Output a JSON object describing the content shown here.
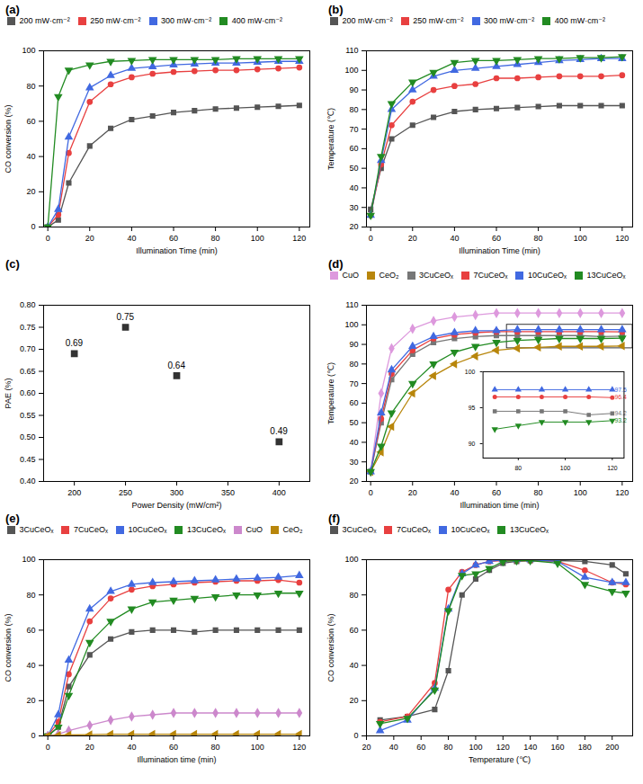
{
  "chart_data": [
    {
      "type": "line",
      "title": "(a)",
      "xlabel": "Illumination Time (min)",
      "ylabel": "CO conversion (%)",
      "xlim": [
        -2,
        125
      ],
      "ylim": [
        0,
        100
      ],
      "xticks": [
        0,
        20,
        40,
        60,
        80,
        100,
        120
      ],
      "yticks": [
        0,
        20,
        40,
        60,
        80,
        100
      ],
      "x": [
        0,
        5,
        10,
        20,
        30,
        40,
        50,
        60,
        70,
        80,
        90,
        100,
        110,
        120
      ],
      "series": [
        {
          "name": "200 mW·cm⁻²",
          "color": "#555555",
          "marker": "square",
          "values": [
            0,
            4,
            25,
            46,
            56,
            61,
            63,
            65,
            66,
            67,
            67.5,
            68,
            68.5,
            69
          ]
        },
        {
          "name": "250 mW·cm⁻²",
          "color": "#e84040",
          "marker": "circle",
          "values": [
            0,
            7,
            42,
            71,
            81,
            85,
            87,
            88,
            88.5,
            89,
            89,
            89.5,
            90,
            90.5
          ]
        },
        {
          "name": "300 mW·cm⁻²",
          "color": "#4169e1",
          "marker": "triangle-up",
          "values": [
            0,
            10,
            51,
            79,
            86,
            90,
            91,
            92,
            92.5,
            93,
            93,
            93.5,
            94,
            94
          ]
        },
        {
          "name": "400 mW·cm⁻²",
          "color": "#228b22",
          "marker": "triangle-down",
          "values": [
            0,
            74,
            89,
            92,
            94,
            94.5,
            95,
            95,
            95,
            95,
            95.5,
            95.5,
            95.5,
            95.5
          ]
        }
      ]
    },
    {
      "type": "line",
      "title": "(b)",
      "xlabel": "Illumination Time (min)",
      "ylabel": "Temperature (℃)",
      "xlim": [
        -2,
        125
      ],
      "ylim": [
        20,
        110
      ],
      "xticks": [
        0,
        20,
        40,
        60,
        80,
        100,
        120
      ],
      "yticks": [
        20,
        30,
        40,
        50,
        60,
        70,
        80,
        90,
        100,
        110
      ],
      "x": [
        0,
        5,
        10,
        20,
        30,
        40,
        50,
        60,
        70,
        80,
        90,
        100,
        110,
        120
      ],
      "series": [
        {
          "name": "200 mW·cm⁻²",
          "color": "#555555",
          "marker": "square",
          "values": [
            29,
            50,
            65,
            72,
            76,
            79,
            80,
            80.5,
            81,
            81.5,
            82,
            82,
            82,
            82
          ]
        },
        {
          "name": "250 mW·cm⁻²",
          "color": "#e84040",
          "marker": "circle",
          "values": [
            26,
            52,
            72,
            84,
            90,
            92,
            93,
            96,
            96,
            96.5,
            97,
            97,
            97,
            97.5
          ]
        },
        {
          "name": "300 mW·cm⁻²",
          "color": "#4169e1",
          "marker": "triangle-up",
          "values": [
            26,
            54,
            80,
            90,
            97,
            100,
            101,
            102,
            103,
            104,
            105,
            105.5,
            106,
            106
          ]
        },
        {
          "name": "400 mW·cm⁻²",
          "color": "#228b22",
          "marker": "triangle-down",
          "values": [
            26,
            56,
            83,
            94,
            99,
            104,
            105,
            105,
            105.5,
            106,
            106,
            106.5,
            106.5,
            107
          ]
        }
      ]
    },
    {
      "type": "scatter",
      "title": "(c)",
      "xlabel": "Power Density (mW/cm²)",
      "ylabel": "PAE (%)",
      "xlim": [
        170,
        430
      ],
      "ylim": [
        0.4,
        0.8
      ],
      "xticks": [
        200,
        250,
        300,
        350,
        400
      ],
      "yticks": [
        {
          "value": 0.4,
          "label": "0.40"
        },
        0.45,
        {
          "value": 0.5,
          "label": "0.50"
        },
        0.55,
        {
          "value": 0.6,
          "label": "0.60"
        },
        0.65,
        {
          "value": 0.7,
          "label": "0.70"
        },
        0.75,
        {
          "value": 0.8,
          "label": "0.80"
        }
      ],
      "x": [
        200,
        250,
        300,
        400
      ],
      "values": [
        0.69,
        0.75,
        0.64,
        0.49
      ],
      "color": "#333333",
      "marker": "square",
      "data_labels": true
    },
    {
      "type": "line",
      "title": "(d)",
      "xlabel": "Illumination time (min)",
      "ylabel": "Temperature (℃)",
      "xlim": [
        -2,
        125
      ],
      "ylim": [
        20,
        110
      ],
      "xticks": [
        0,
        20,
        40,
        60,
        80,
        100,
        120
      ],
      "yticks": [
        20,
        30,
        40,
        50,
        60,
        70,
        80,
        90,
        100,
        110
      ],
      "x": [
        0,
        5,
        10,
        20,
        30,
        40,
        50,
        60,
        70,
        80,
        90,
        100,
        110,
        120
      ],
      "series": [
        {
          "name": "CuO",
          "color": "#dd99dd",
          "marker": "diamond",
          "values": [
            25,
            65,
            88,
            98,
            102,
            104,
            105,
            106,
            106,
            106,
            106,
            106,
            106,
            106
          ]
        },
        {
          "name": "CeO₂",
          "color": "#b8860b",
          "marker": "triangle-left",
          "values": [
            25,
            35,
            48,
            65,
            74,
            80,
            84,
            87,
            88,
            88.5,
            89,
            89,
            89,
            89.2
          ]
        },
        {
          "name": "3CuCeOₓ",
          "color": "#777777",
          "marker": "square",
          "values": [
            25,
            50,
            72,
            85,
            91,
            93,
            94,
            94.5,
            94.5,
            94.5,
            94.5,
            94.5,
            94,
            94.2
          ]
        },
        {
          "name": "7CuCeOₓ",
          "color": "#e84040",
          "marker": "circle",
          "values": [
            25,
            52,
            75,
            87,
            93,
            95,
            96,
            96.5,
            96.5,
            96.5,
            96.5,
            96.5,
            96.5,
            96.4
          ]
        },
        {
          "name": "10CuCeOₓ",
          "color": "#4169e1",
          "marker": "triangle-up",
          "values": [
            25,
            55,
            77,
            89,
            94,
            96,
            97,
            97,
            97.5,
            97.5,
            97.5,
            97.5,
            97.5,
            97.5
          ]
        },
        {
          "name": "13CuCeOₓ",
          "color": "#228b22",
          "marker": "triangle-down",
          "values": [
            25,
            38,
            55,
            70,
            80,
            86,
            89,
            91,
            92,
            92.5,
            93,
            93,
            93,
            93.2
          ]
        }
      ],
      "inset": {
        "type": "line",
        "xlim": [
          65,
          125
        ],
        "ylim": [
          88,
          100
        ],
        "xticks": [
          80,
          100,
          120
        ],
        "yticks": [
          90,
          95,
          100
        ],
        "x": [
          70,
          80,
          90,
          100,
          110,
          120
        ],
        "series": [
          {
            "name": "3CuCeOₓ",
            "color": "#777777",
            "marker": "square",
            "values": [
              94.5,
              94.5,
              94.5,
              94.5,
              94,
              94.2
            ]
          },
          {
            "name": "7CuCeOₓ",
            "color": "#e84040",
            "marker": "circle",
            "values": [
              96.5,
              96.5,
              96.5,
              96.5,
              96.5,
              96.4
            ]
          },
          {
            "name": "10CuCeOₓ",
            "color": "#4169e1",
            "marker": "triangle-up",
            "values": [
              97.5,
              97.5,
              97.5,
              97.5,
              97.5,
              97.5
            ]
          },
          {
            "name": "13CuCeOₓ",
            "color": "#228b22",
            "marker": "triangle-down",
            "values": [
              92,
              92.5,
              93,
              93,
              93,
              93.2
            ]
          }
        ],
        "annotations": [
          {
            "text": "97.5",
            "x": 121,
            "y": 97.5,
            "color": "#4169e1"
          },
          {
            "text": "96.4",
            "x": 121,
            "y": 96.4,
            "color": "#e84040"
          },
          {
            "text": "94.2",
            "x": 121,
            "y": 94.2,
            "color": "#777777"
          },
          {
            "text": "93.2",
            "x": 121,
            "y": 93.2,
            "color": "#228b22"
          }
        ]
      }
    },
    {
      "type": "line",
      "title": "(e)",
      "xlabel": "Illumination time (min)",
      "ylabel": "CO conversion (%)",
      "xlim": [
        -2,
        125
      ],
      "ylim": [
        0,
        100
      ],
      "xticks": [
        0,
        20,
        40,
        60,
        80,
        100,
        120
      ],
      "yticks": [
        0,
        20,
        40,
        60,
        80,
        100
      ],
      "x": [
        0,
        5,
        10,
        20,
        30,
        40,
        50,
        60,
        70,
        80,
        90,
        100,
        110,
        120
      ],
      "series": [
        {
          "name": "3CuCeOₓ",
          "color": "#555555",
          "marker": "square",
          "values": [
            0,
            5,
            28,
            46,
            55,
            59,
            60,
            60,
            59,
            60,
            60,
            60,
            60,
            60
          ]
        },
        {
          "name": "7CuCeOₓ",
          "color": "#e84040",
          "marker": "circle",
          "values": [
            0,
            8,
            35,
            65,
            78,
            83,
            85,
            86,
            87,
            87.5,
            88,
            88,
            88.5,
            87
          ]
        },
        {
          "name": "10CuCeOₓ",
          "color": "#4169e1",
          "marker": "triangle-up",
          "values": [
            0,
            12,
            43,
            72,
            82,
            86,
            87,
            87.5,
            88,
            88.5,
            89,
            89.5,
            90,
            91
          ]
        },
        {
          "name": "13CuCeOₓ",
          "color": "#228b22",
          "marker": "triangle-down",
          "values": [
            0,
            5,
            23,
            53,
            65,
            72,
            76,
            77,
            78,
            79,
            80,
            80,
            81,
            81
          ]
        },
        {
          "name": "CuO",
          "color": "#cc88cc",
          "marker": "diamond",
          "values": [
            0,
            1,
            3,
            6,
            9,
            11,
            12,
            13,
            13,
            13,
            13,
            13,
            13,
            13
          ]
        },
        {
          "name": "CeO₂",
          "color": "#b8860b",
          "marker": "triangle-left",
          "values": [
            0,
            0.3,
            0.5,
            0.7,
            1,
            1,
            1,
            1,
            1,
            1,
            1,
            1,
            1,
            1
          ]
        }
      ]
    },
    {
      "type": "line",
      "title": "(f)",
      "xlabel": "Temperature (℃)",
      "ylabel": "CO conversion (%)",
      "xlim": [
        20,
        215
      ],
      "ylim": [
        0,
        100
      ],
      "xticks": [
        20,
        40,
        60,
        80,
        100,
        120,
        140,
        160,
        180,
        200
      ],
      "yticks": [
        0,
        20,
        40,
        60,
        80,
        100
      ],
      "x": [
        30,
        50,
        70,
        80,
        90,
        100,
        110,
        120,
        130,
        140,
        160,
        180,
        200,
        210
      ],
      "series": [
        {
          "name": "3CuCeOₓ",
          "color": "#555555",
          "marker": "square",
          "values": [
            9,
            11,
            15,
            37,
            80,
            89,
            94,
            98,
            99,
            99.5,
            99.5,
            99,
            97,
            92
          ]
        },
        {
          "name": "7CuCeOₓ",
          "color": "#e84040",
          "marker": "circle",
          "values": [
            8,
            11,
            30,
            83,
            93,
            97,
            99,
            99.5,
            99.5,
            99.5,
            99,
            94,
            87,
            86
          ]
        },
        {
          "name": "10CuCeOₓ",
          "color": "#4169e1",
          "marker": "triangle-up",
          "values": [
            3,
            9,
            27,
            72,
            92,
            97,
            99,
            100,
            100,
            100,
            99,
            90,
            87,
            87
          ]
        },
        {
          "name": "13CuCeOₓ",
          "color": "#228b22",
          "marker": "triangle-down",
          "values": [
            7,
            10,
            26,
            71,
            91,
            92,
            95,
            99,
            99.5,
            99.5,
            98,
            86,
            82,
            81
          ]
        }
      ]
    }
  ]
}
